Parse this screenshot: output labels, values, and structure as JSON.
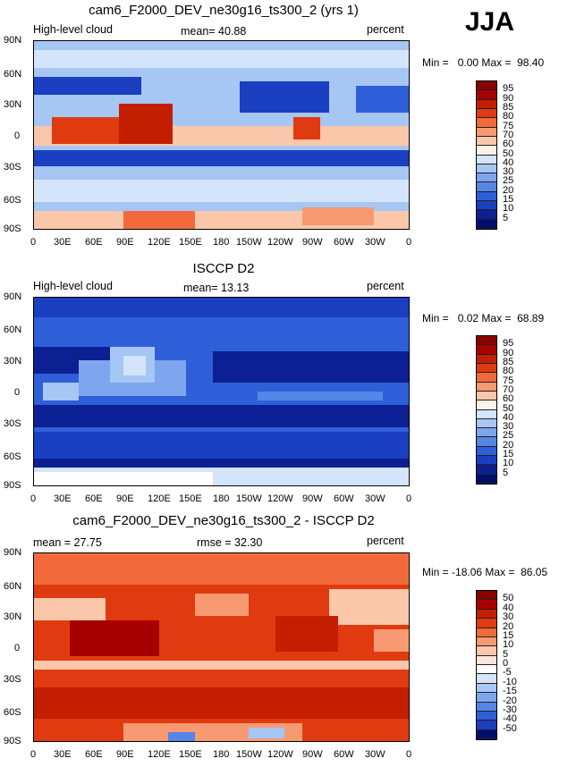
{
  "season": "JJA",
  "chart_data": [
    {
      "type": "heatmap",
      "title": "cam6_F2000_DEV_ne30g16_ts300_2 (yrs 1)",
      "variable": "High-level cloud",
      "stat_text": "mean=  40.88",
      "units": "percent",
      "min_label": "Min =",
      "min_value": "0.00",
      "max_label": "Max =",
      "max_value": "98.40",
      "levels": [
        "95",
        "90",
        "85",
        "80",
        "75",
        "70",
        "60",
        "50",
        "40",
        "30",
        "25",
        "20",
        "15",
        "10",
        "5"
      ],
      "colors": [
        "#8b0000",
        "#a60000",
        "#c41e00",
        "#e03a10",
        "#f26a3c",
        "#f79a72",
        "#fbc7aa",
        "#fdf2e8",
        "#d4e4fa",
        "#a6c6f4",
        "#7ea6ee",
        "#5586e6",
        "#2f5fd8",
        "#1a3fc0",
        "#0c2094",
        "#000e6e"
      ],
      "lon_labels": [
        "0",
        "30E",
        "60E",
        "90E",
        "120E",
        "150E",
        "180",
        "150W",
        "120W",
        "90W",
        "60W",
        "30W",
        "0"
      ],
      "lat_labels": [
        "90N",
        "60N",
        "30N",
        "0",
        "30S",
        "60S",
        "90S"
      ]
    },
    {
      "type": "heatmap",
      "title": "ISCCP D2",
      "variable": "High-level cloud",
      "stat_text": "mean=  13.13",
      "units": "percent",
      "min_label": "Min =",
      "min_value": "0.02",
      "max_label": "Max =",
      "max_value": "68.89",
      "levels": [
        "95",
        "90",
        "85",
        "80",
        "75",
        "70",
        "60",
        "50",
        "40",
        "30",
        "25",
        "20",
        "15",
        "10",
        "5"
      ],
      "colors": [
        "#8b0000",
        "#a60000",
        "#c41e00",
        "#e03a10",
        "#f26a3c",
        "#f79a72",
        "#fbc7aa",
        "#fdf2e8",
        "#d4e4fa",
        "#a6c6f4",
        "#7ea6ee",
        "#5586e6",
        "#2f5fd8",
        "#1a3fc0",
        "#0c2094",
        "#000e6e"
      ],
      "lon_labels": [
        "0",
        "30E",
        "60E",
        "90E",
        "120E",
        "150E",
        "180",
        "150W",
        "120W",
        "90W",
        "60W",
        "30W",
        "0"
      ],
      "lat_labels": [
        "90N",
        "60N",
        "30N",
        "0",
        "30S",
        "60S",
        "90S"
      ]
    },
    {
      "type": "heatmap",
      "title": "cam6_F2000_DEV_ne30g16_ts300_2 - ISCCP D2",
      "stat_text": "mean =   27.75",
      "rmse_text": "rmse =   32.30",
      "units": "percent",
      "min_label": "Min =",
      "min_value": "-18.06",
      "max_label": "Max =",
      "max_value": "86.05",
      "levels": [
        "50",
        "40",
        "30",
        "20",
        "15",
        "10",
        "5",
        "0",
        "-5",
        "-10",
        "-15",
        "-20",
        "-30",
        "-40",
        "-50"
      ],
      "colors": [
        "#8b0000",
        "#a60000",
        "#c41e00",
        "#e03a10",
        "#f26a3c",
        "#f79a72",
        "#fbc7aa",
        "#fde6d8",
        "#ffffff",
        "#d4e4fa",
        "#a6c6f4",
        "#7ea6ee",
        "#5586e6",
        "#2f5fd8",
        "#1a3fc0",
        "#000e6e"
      ],
      "lon_labels": [
        "0",
        "30E",
        "60E",
        "90E",
        "120E",
        "150E",
        "180",
        "150W",
        "120W",
        "90W",
        "60W",
        "30W",
        "0"
      ],
      "lat_labels": [
        "90N",
        "60N",
        "30N",
        "0",
        "30S",
        "60S",
        "90S"
      ]
    }
  ]
}
